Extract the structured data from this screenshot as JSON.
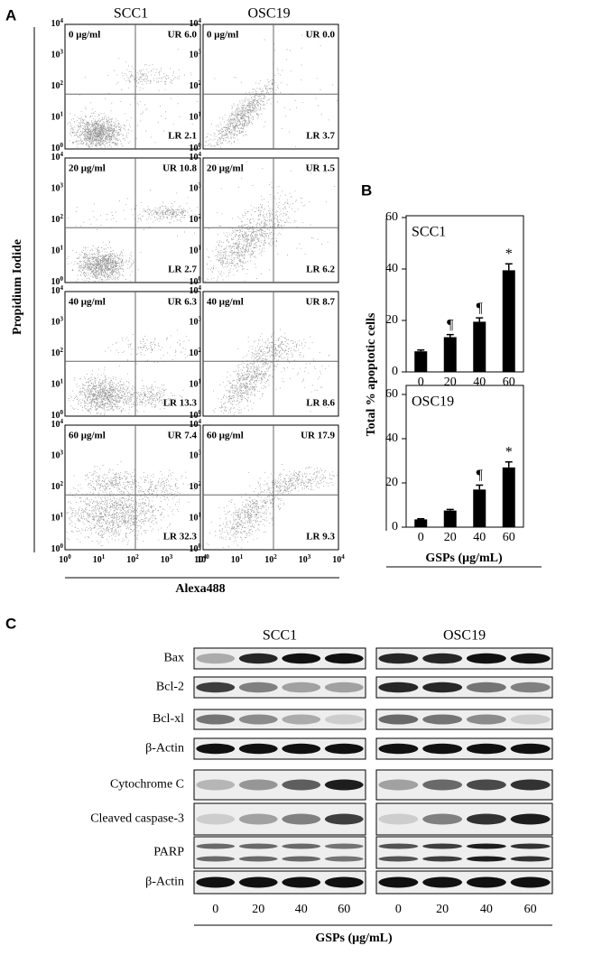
{
  "panel_labels": [
    "A",
    "B",
    "C"
  ],
  "flow": {
    "column_titles": [
      "SCC1",
      "OSC19"
    ],
    "y_label": "Propidium Iodide",
    "x_label": "Alexa488",
    "ticks": [
      {
        "base": "10",
        "exp": "0"
      },
      {
        "base": "10",
        "exp": "1"
      },
      {
        "base": "10",
        "exp": "2"
      },
      {
        "base": "10",
        "exp": "3"
      },
      {
        "base": "10",
        "exp": "4"
      }
    ],
    "plots": [
      [
        {
          "dose": "0 μg/ml",
          "ur": "UR 6.0",
          "lr": "LR 2.1"
        },
        {
          "dose": "0 μg/ml",
          "ur": "UR 0.0",
          "lr": "LR 3.7"
        }
      ],
      [
        {
          "dose": "20 μg/ml",
          "ur": "UR 10.8",
          "lr": "LR 2.7"
        },
        {
          "dose": "20 μg/ml",
          "ur": "UR 1.5",
          "lr": "LR 6.2"
        }
      ],
      [
        {
          "dose": "40 μg/ml",
          "ur": "UR 6.3",
          "lr": "LR 13.3"
        },
        {
          "dose": "40 μg/ml",
          "ur": "UR 8.7",
          "lr": "LR 8.6"
        }
      ],
      [
        {
          "dose": "60 μg/ml",
          "ur": "UR 7.4",
          "lr": "LR 32.3"
        },
        {
          "dose": "60 μg/ml",
          "ur": "UR 17.9",
          "lr": "LR 9.3"
        }
      ]
    ]
  },
  "chart_data": [
    {
      "type": "bar",
      "title": "SCC1",
      "y_label": "Total % apoptotic cells",
      "categories": [
        "0",
        "20",
        "40",
        "60"
      ],
      "values": [
        8,
        13.5,
        19.5,
        39.5
      ],
      "errors": [
        0.5,
        1,
        1.5,
        2.5
      ],
      "markers": [
        null,
        "¶",
        "¶",
        "*"
      ],
      "color": "#000000",
      "ylim": [
        0,
        60
      ],
      "yticks": [
        0,
        20,
        40,
        60
      ]
    },
    {
      "type": "bar",
      "title": "OSC19",
      "x_label": "GSPs (μg/mL)",
      "categories": [
        "0",
        "20",
        "40",
        "60"
      ],
      "values": [
        3.5,
        7.5,
        17,
        27
      ],
      "errors": [
        0.3,
        0.5,
        2,
        2.5
      ],
      "markers": [
        null,
        null,
        "¶",
        "*"
      ],
      "color": "#000000",
      "ylim": [
        0,
        60
      ],
      "yticks": [
        0,
        20,
        40,
        60
      ]
    }
  ],
  "blot": {
    "groups": [
      {
        "name": "SCC1",
        "lanes": [
          "0",
          "20",
          "40",
          "60"
        ]
      },
      {
        "name": "OSC19",
        "lanes": [
          "0",
          "20",
          "40",
          "60"
        ]
      }
    ],
    "rows": [
      "Bax",
      "Bcl-2",
      "Bcl-xl",
      "β-Actin",
      "Cytochrome C",
      "Cleaved caspase-3",
      "PARP",
      "β-Actin"
    ],
    "x_label": "GSPs (μg/mL)"
  }
}
